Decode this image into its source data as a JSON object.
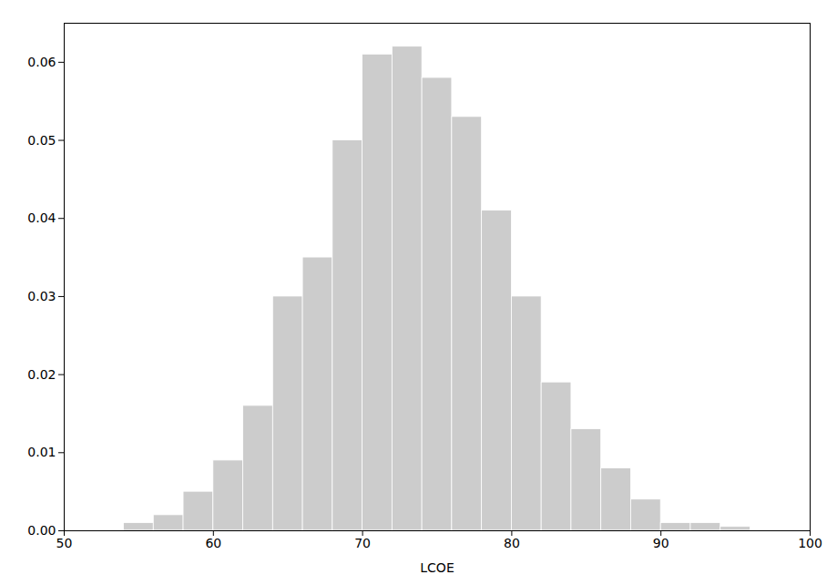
{
  "chart_data": {
    "type": "histogram",
    "bins": [
      54,
      56,
      58,
      60,
      62,
      64,
      66,
      68,
      70,
      72,
      74,
      76,
      78,
      80,
      82,
      84,
      86,
      88,
      90,
      92,
      94,
      96
    ],
    "values": [
      0.001,
      0.002,
      0.005,
      0.009,
      0.016,
      0.03,
      0.035,
      0.05,
      0.061,
      0.062,
      0.058,
      0.053,
      0.041,
      0.03,
      0.019,
      0.013,
      0.008,
      0.004,
      0.001,
      0.001,
      0.0005
    ],
    "color": "#cccccc",
    "xlabel": "LCOE",
    "xlim": [
      50,
      100
    ],
    "ylim": [
      0,
      0.065
    ],
    "xticks": [
      50,
      60,
      70,
      80,
      90,
      100
    ],
    "yticks": [
      {
        "value": 0,
        "label": "0.00"
      },
      0.01,
      0.02,
      0.03,
      0.04,
      0.05,
      0.06
    ],
    "grid": false
  }
}
